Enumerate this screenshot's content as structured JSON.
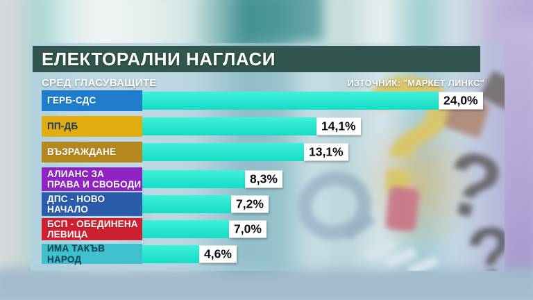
{
  "header": {
    "title": "ЕЛЕКТОРАЛНИ НАГЛАСИ",
    "subtitle": "СРЕД ГЛАСУВАЩИТЕ",
    "source": "ИЗТОЧНИК: \"МАРКЕТ ЛИНКС\""
  },
  "chart_data": {
    "type": "bar",
    "orientation": "horizontal",
    "title": "ЕЛЕКТОРАЛНИ НАГЛАСИ",
    "subtitle": "СРЕД ГЛАСУВАЩИТЕ",
    "source": "ИЗТОЧНИК: \"МАРКЕТ ЛИНКС\"",
    "unit": "percent",
    "xlim": [
      0,
      26
    ],
    "bar_color": "#1fe3cc",
    "value_box_bg": "#ffffff",
    "value_text_color": "#0c0c0c",
    "categories": [
      "ГЕРБ-СДС",
      "ПП-ДБ",
      "ВЪЗРАЖДАНЕ",
      "АЛИАНС ЗА ПРАВА И СВОБОДИ",
      "ДПС - НОВО НАЧАЛО",
      "БСП - ОБЕДИНЕНА ЛЕВИЦА",
      "ИМА ТАКЪВ НАРОД"
    ],
    "values": [
      24.0,
      14.1,
      13.1,
      8.3,
      7.2,
      7.0,
      4.6
    ],
    "rows": [
      {
        "party": "ГЕРБ-СДС",
        "lines": [
          "ГЕРБ-СДС"
        ],
        "value": 24.0,
        "value_label": "24,0%",
        "box_color": "#1e7ccb",
        "text_color": "#ffffff"
      },
      {
        "party": "ПП-ДБ",
        "lines": [
          "ПП-ДБ"
        ],
        "value": 14.1,
        "value_label": "14,1%",
        "box_color": "#e2ad10",
        "text_color": "#1e3a5f"
      },
      {
        "party": "ВЪЗРАЖДАНЕ",
        "lines": [
          "ВЪЗРАЖДАНЕ"
        ],
        "value": 13.1,
        "value_label": "13,1%",
        "box_color": "#b5871f",
        "text_color": "#ffffff"
      },
      {
        "party": "АЛИАНС ЗА ПРАВА И СВОБОДИ",
        "lines": [
          "АЛИАНС ЗА",
          "ПРАВА И СВОБОДИ"
        ],
        "value": 8.3,
        "value_label": "8,3%",
        "box_color": "#9023c3",
        "text_color": "#ffffff"
      },
      {
        "party": "ДПС - НОВО НАЧАЛО",
        "lines": [
          "ДПС - НОВО",
          "НАЧАЛО"
        ],
        "value": 7.2,
        "value_label": "7,2%",
        "box_color": "#2b5cab",
        "text_color": "#ffffff"
      },
      {
        "party": "БСП - ОБЕДИНЕНА ЛЕВИЦА",
        "lines": [
          "БСП - ОБЕДИНЕНА",
          "ЛЕВИЦА"
        ],
        "value": 7.0,
        "value_label": "7,0%",
        "box_color": "#cd2030",
        "text_color": "#ffffff"
      },
      {
        "party": "ИМА ТАКЪВ НАРОД",
        "lines": [
          "ИМА ТАКЪВ",
          "НАРОД"
        ],
        "value": 4.6,
        "value_label": "4,6%",
        "box_color": "#3fc0cb",
        "text_color": "#18435f"
      }
    ]
  },
  "colors": {
    "title_bar": "#32564f",
    "bar": "#1fe3cc"
  }
}
